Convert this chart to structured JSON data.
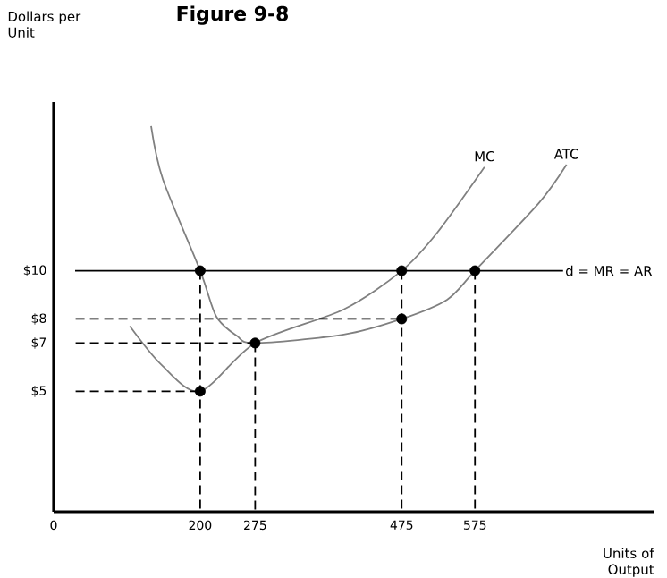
{
  "chart_data": {
    "type": "line",
    "title": "Figure 9-8",
    "xlabel": "Units of Output",
    "ylabel": "Dollars per Unit",
    "xlim": [
      0,
      820
    ],
    "ylim": [
      0,
      17
    ],
    "xticks": [
      0,
      200,
      275,
      475,
      575
    ],
    "yticks": [
      {
        "value": 5,
        "label": "$5"
      },
      {
        "value": 7,
        "label": "$7"
      },
      {
        "value": 8,
        "label": "$8"
      },
      {
        "value": 10,
        "label": "$10"
      }
    ],
    "ref_lines": [
      {
        "axis": "y",
        "value": 10,
        "label": "d = MR = AR",
        "color": "#000000",
        "line_style": "solid"
      }
    ],
    "legend": false,
    "series": [
      {
        "name": "MC",
        "color": "#808080",
        "x": [
          104,
          147,
          200,
          275,
          396,
          475,
          524,
          588
        ],
        "values": [
          7.7,
          6.1,
          5,
          7,
          8.4,
          10,
          11.6,
          14.3
        ]
      },
      {
        "name": "ATC",
        "color": "#808080",
        "x": [
          133,
          149,
          200,
          222,
          250,
          275,
          396,
          475,
          537,
          575,
          662,
          700
        ],
        "values": [
          16,
          13.8,
          10,
          8.1,
          7.3,
          7,
          7.35,
          8,
          8.8,
          10,
          12.8,
          14.4
        ]
      },
      {
        "type": "line",
        "line_style": "dashed",
        "color": "#000000",
        "x": [
          30,
          475
        ],
        "values": [
          8,
          8
        ]
      },
      {
        "type": "line",
        "line_style": "dashed",
        "color": "#000000",
        "x": [
          30,
          275
        ],
        "values": [
          7,
          7
        ]
      },
      {
        "type": "line",
        "line_style": "dashed",
        "color": "#000000",
        "x": [
          30,
          200
        ],
        "values": [
          5,
          5
        ]
      },
      {
        "type": "line",
        "line_style": "dashed",
        "color": "#000000",
        "x": [
          200,
          200
        ],
        "values": [
          10,
          0
        ]
      },
      {
        "type": "line",
        "line_style": "dashed",
        "color": "#000000",
        "x": [
          275,
          275
        ],
        "values": [
          7,
          0
        ]
      },
      {
        "type": "line",
        "line_style": "dashed",
        "color": "#000000",
        "x": [
          475,
          475
        ],
        "values": [
          10,
          0
        ]
      },
      {
        "type": "line",
        "line_style": "dashed",
        "color": "#000000",
        "x": [
          575,
          575
        ],
        "values": [
          10,
          0
        ]
      },
      {
        "type": "scatter",
        "marker": "circle",
        "color": "#000000",
        "x": [
          200,
          200,
          275,
          475,
          475,
          575
        ],
        "values": [
          10,
          5,
          7,
          10,
          8,
          10
        ]
      }
    ]
  }
}
